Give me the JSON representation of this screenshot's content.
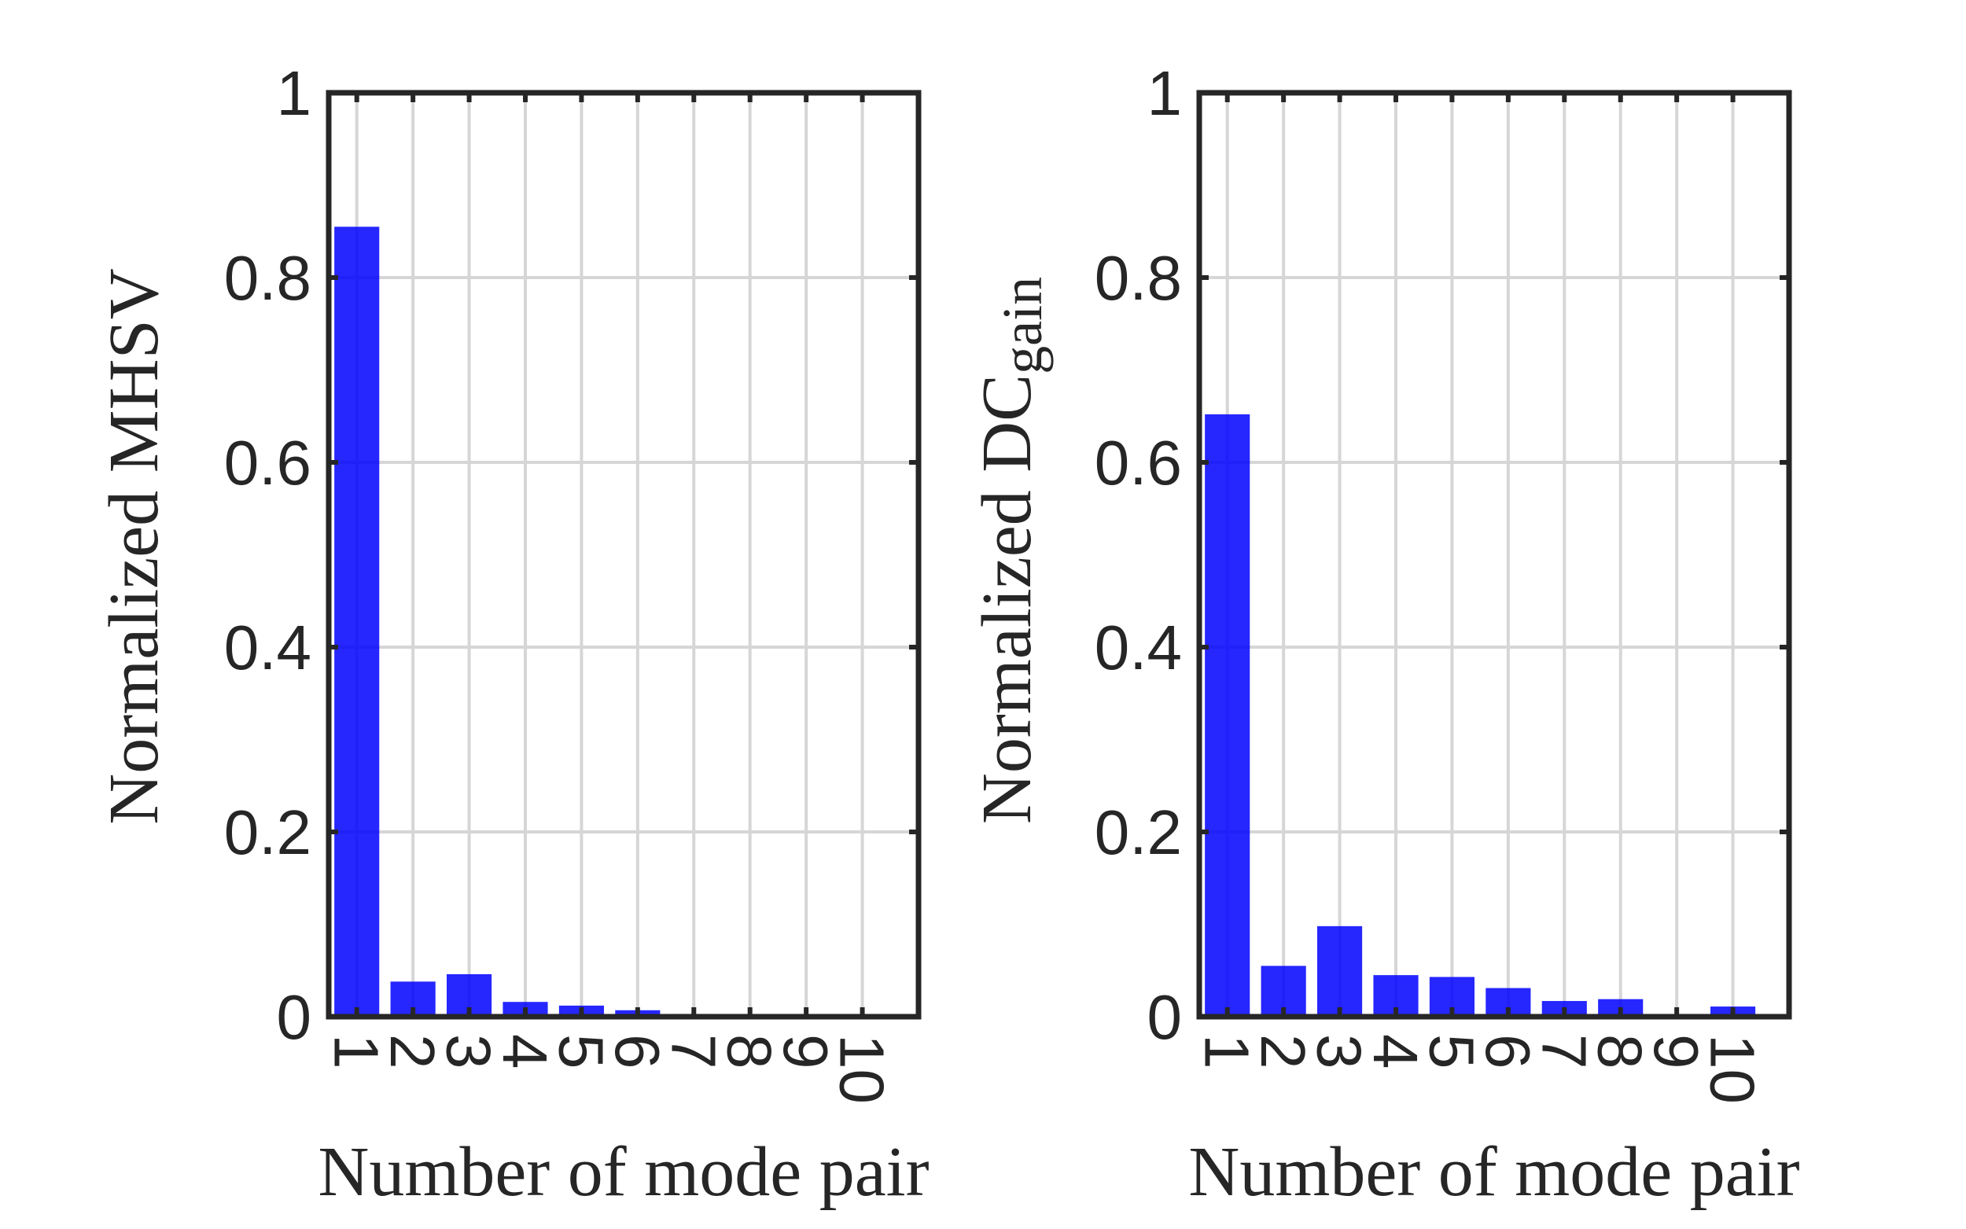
{
  "chart_data": [
    {
      "type": "bar",
      "categories": [
        "1",
        "2",
        "3",
        "4",
        "5",
        "6",
        "7",
        "8",
        "9",
        "10"
      ],
      "values": [
        0.855,
        0.038,
        0.046,
        0.016,
        0.012,
        0.007,
        0.003,
        0.002,
        0.001,
        0.0
      ],
      "xlabel": "Number of mode pair",
      "ylabel": "Normalized MHSV",
      "ylim": [
        0,
        1
      ],
      "yticks": [
        "0",
        "0.2",
        "0.4",
        "0.6",
        "0.8",
        "1"
      ],
      "grid": true,
      "bar_color": "#0000FF"
    },
    {
      "type": "bar",
      "categories": [
        "1",
        "2",
        "3",
        "4",
        "5",
        "6",
        "7",
        "8",
        "9",
        "10"
      ],
      "values": [
        0.652,
        0.055,
        0.098,
        0.045,
        0.043,
        0.031,
        0.017,
        0.019,
        0.002,
        0.011
      ],
      "xlabel": "Number of mode pair",
      "ylabel_main": "Normalized DC",
      "ylabel_sub": "gain",
      "ylim": [
        0,
        1
      ],
      "yticks": [
        "0",
        "0.2",
        "0.4",
        "0.6",
        "0.8",
        "1"
      ],
      "grid": true,
      "bar_color": "#0000FF"
    }
  ]
}
